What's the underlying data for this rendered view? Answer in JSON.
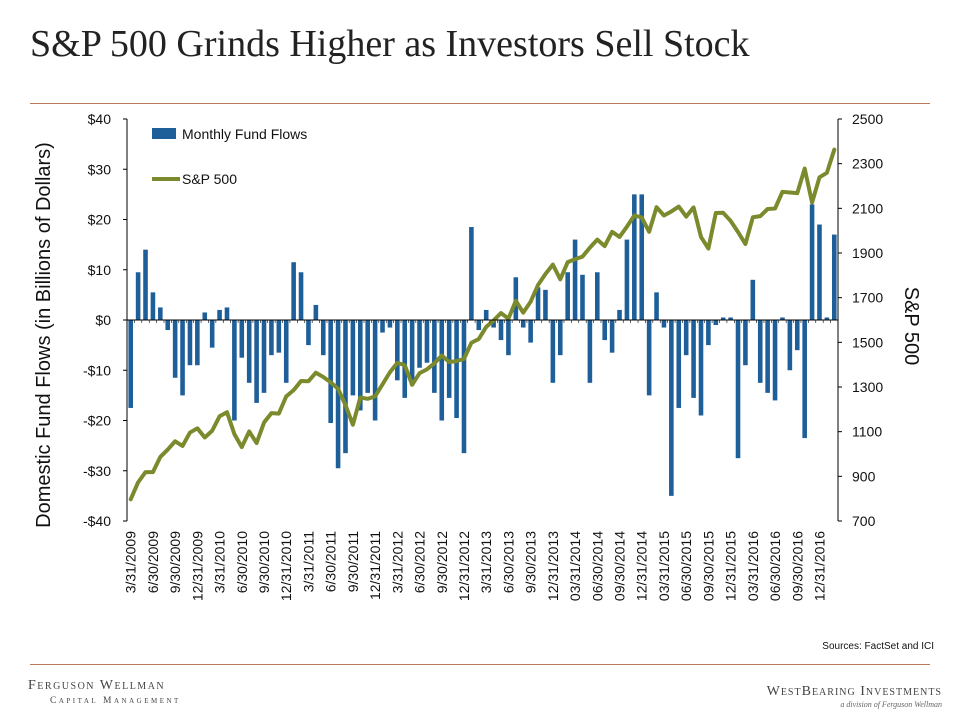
{
  "header": {
    "title": "S&P 500 Grinds Higher as Investors Sell Stock"
  },
  "footer": {
    "sources": "Sources: FactSet and ICI",
    "brand_left_line1": "Ferguson Wellman",
    "brand_left_line2": "Capital Management",
    "brand_right_line1": "WestBearing Investments",
    "brand_right_line2": "a division of Ferguson Wellman"
  },
  "colors": {
    "bars": "#1f5f99",
    "line": "#7b8a2c",
    "rule": "#b87b5a"
  },
  "chart_data": {
    "type": "bar+line",
    "title": "S&P 500 Grinds Higher as Investors Sell Stock",
    "ylabel": "Domestic Fund Flows  (in Billions of Dollars)",
    "y2label": "S&P 500",
    "ylim": [
      -40,
      40
    ],
    "y2lim": [
      700,
      2500
    ],
    "yticks": [
      "$40",
      "$30",
      "$20",
      "$10",
      "$0",
      "-$10",
      "-$20",
      "-$30",
      "-$40"
    ],
    "y2ticks": [
      "2500",
      "2300",
      "2100",
      "1900",
      "1700",
      "1500",
      "1300",
      "1100",
      "900",
      "700"
    ],
    "xtick_labels": [
      "3/31/2009",
      "6/30/2009",
      "9/30/2009",
      "12/31/2009",
      "3/31/2010",
      "6/30/2010",
      "9/30/2010",
      "12/31/2010",
      "3/31/2011",
      "6/30/2011",
      "9/30/2011",
      "12/31/2011",
      "3/31/2012",
      "6/30/2012",
      "9/30/2012",
      "12/31/2012",
      "3/31/2013",
      "6/30/2013",
      "9/30/2013",
      "12/31/2013",
      "03/31/2014",
      "06/30/2014",
      "09/30/2014",
      "12/31/2014",
      "03/31/2015",
      "06/30/2015",
      "09/30/2015",
      "12/31/2015",
      "03/31/2016",
      "06/30/2016",
      "09/30/2016",
      "12/31/2016"
    ],
    "legend": {
      "placement": "top-left",
      "bar_label": "Monthly Fund Flows",
      "line_label": "S&P 500"
    },
    "series": [
      {
        "name": "Monthly Fund Flows",
        "type": "bar",
        "axis": "left",
        "values": [
          -17.5,
          9.5,
          14,
          5.5,
          2.5,
          -2,
          -11.5,
          -15,
          -9,
          -9,
          1.5,
          -5.5,
          2,
          2.5,
          -20,
          -7.5,
          -12.5,
          -16.5,
          -14.5,
          -7,
          -6.5,
          -12.5,
          11.5,
          9.5,
          -5,
          3,
          -7,
          -20.5,
          -29.5,
          -26.5,
          -15,
          -18,
          -14.5,
          -20,
          -2.5,
          -1.5,
          -12,
          -15.5,
          -13,
          -9.5,
          -8.5,
          -14.5,
          -20,
          -15.5,
          -19.5,
          -26.5,
          18.5,
          -2,
          2,
          -1.5,
          -4,
          -7,
          8.5,
          -1.5,
          -4.5,
          6.5,
          6,
          -12.5,
          -7,
          9.5,
          16,
          9,
          -12.5,
          9.5,
          -4,
          -6.5,
          2,
          16,
          25,
          25,
          -15,
          5.5,
          -1.5,
          -35,
          -17.5,
          -7,
          -15.5,
          -19,
          -5,
          -1,
          0.5,
          0.5,
          -27.5,
          -9,
          8,
          -12.5,
          -14.5,
          -16,
          0.5,
          -10,
          -6,
          -23.5,
          23,
          19,
          0.5,
          17
        ]
      },
      {
        "name": "S&P 500",
        "type": "line",
        "axis": "right",
        "values": [
          797,
          873,
          919,
          919,
          987,
          1020,
          1057,
          1036,
          1096,
          1115,
          1074,
          1104,
          1169,
          1187,
          1089,
          1031,
          1101,
          1049,
          1141,
          1183,
          1181,
          1258,
          1286,
          1327,
          1326,
          1364,
          1345,
          1321,
          1292,
          1219,
          1131,
          1253,
          1247,
          1258,
          1312,
          1366,
          1408,
          1398,
          1310,
          1362,
          1379,
          1406,
          1441,
          1412,
          1416,
          1426,
          1498,
          1515,
          1569,
          1598,
          1631,
          1606,
          1686,
          1633,
          1682,
          1757,
          1806,
          1848,
          1782,
          1859,
          1872,
          1884,
          1924,
          1960,
          1931,
          1995,
          1972,
          2018,
          2068,
          2059,
          1995,
          2105,
          2068,
          2086,
          2108,
          2063,
          2104,
          1972,
          1920,
          2079,
          2080,
          2044,
          1994,
          1940,
          2060,
          2065,
          2097,
          2099,
          2174,
          2171,
          2168,
          2278,
          2126,
          2239,
          2259,
          2363
        ]
      }
    ]
  }
}
